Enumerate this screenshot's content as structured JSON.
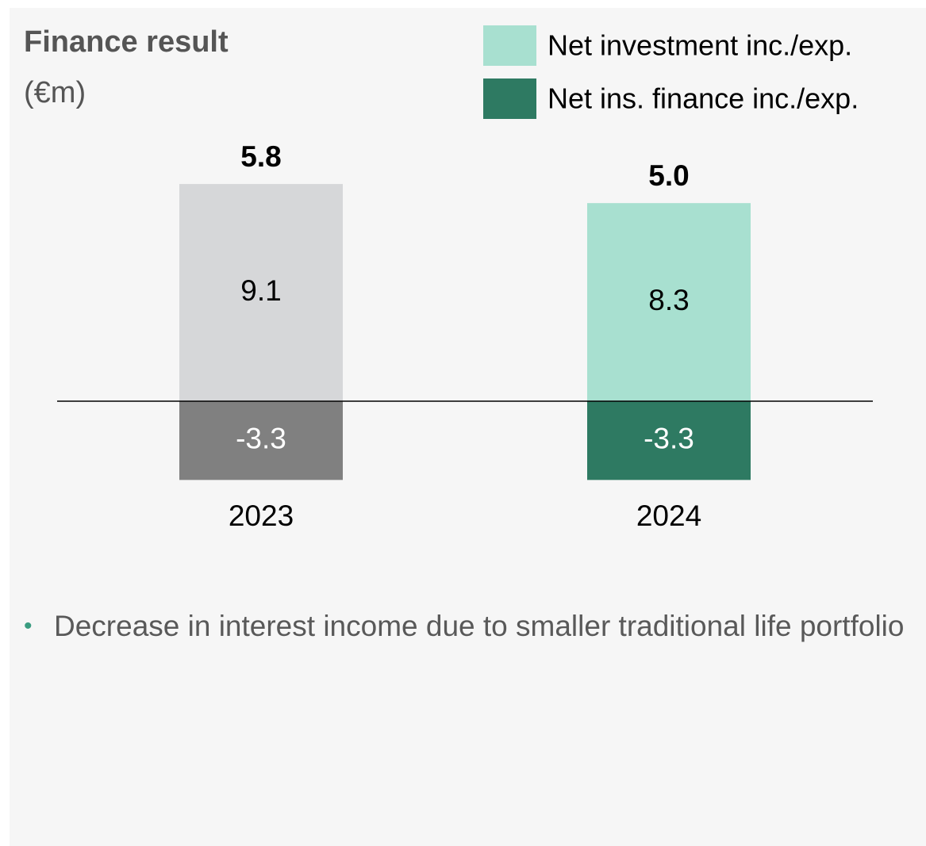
{
  "chart_data": {
    "type": "bar",
    "stacked": true,
    "title": "Finance result",
    "subtitle": "(€m)",
    "categories": [
      "2023",
      "2024"
    ],
    "series": [
      {
        "name": "Net investment inc./exp.",
        "color": "#a8e0d0",
        "point_colors": [
          "#d6d7d9",
          "#a8e0d0"
        ],
        "values": [
          9.1,
          8.3
        ]
      },
      {
        "name": "Net ins. finance inc./exp.",
        "color": "#2e7a62",
        "point_colors": [
          "#808080",
          "#2e7a62"
        ],
        "values": [
          -3.3,
          -3.3
        ]
      }
    ],
    "totals": [
      5.8,
      5.0
    ],
    "total_labels": [
      "5.8",
      "5.0"
    ],
    "note": "Decrease in interest income due to smaller traditional life portfolio"
  }
}
